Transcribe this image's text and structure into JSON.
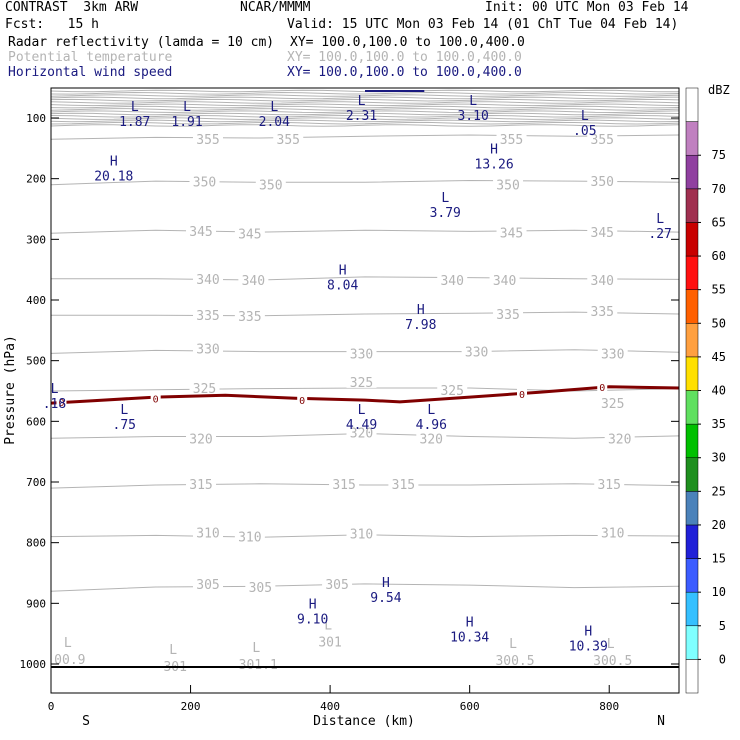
{
  "header": {
    "model": "CONTRAST  3km ARW",
    "center": "NCAR/MMMM",
    "init": "Init: 00 UTC Mon 03 Feb 14",
    "fcst": "Fcst:   15 h",
    "valid": "Valid: 15 UTC Mon 03 Feb 14 (01 ChT Tue 04 Feb 14)",
    "fields": [
      {
        "name": "Radar reflectivity (lamda = 10 cm)",
        "xy": "XY= 100.0,100.0 to 100.0,400.0",
        "color": "#000000"
      },
      {
        "name": "Potential temperature",
        "xy": "XY= 100.0,100.0 to 100.0,400.0",
        "color": "#b4b4b4"
      },
      {
        "name": "Horizontal wind speed",
        "xy": "XY= 100.0,100.0 to 100.0,400.0",
        "color": "#1a1a80"
      }
    ]
  },
  "colors": {
    "theta": "#b4b4b4",
    "wind": "#1a1a80",
    "zero_line": "#800000",
    "axis": "#000000"
  },
  "chart_data": {
    "type": "cross-section",
    "xlabel": "Distance (km)",
    "ylabel": "Pressure (hPa)",
    "xlim": [
      0,
      900
    ],
    "ylim": [
      1050,
      50
    ],
    "xticks": [
      0,
      200,
      400,
      600,
      800
    ],
    "yticks": [
      100,
      200,
      300,
      400,
      500,
      600,
      700,
      800,
      900,
      1000
    ],
    "x_end_labels": [
      "S",
      "N"
    ],
    "theta_contours": [
      {
        "label": "355",
        "points": [
          [
            0,
            135
          ],
          [
            150,
            132
          ],
          [
            300,
            133
          ],
          [
            450,
            130
          ],
          [
            600,
            128
          ],
          [
            750,
            130
          ],
          [
            900,
            128
          ]
        ],
        "label_at": [
          [
            225,
            135
          ],
          [
            340,
            135
          ],
          [
            660,
            135
          ],
          [
            790,
            135
          ]
        ]
      },
      {
        "label": "350",
        "points": [
          [
            0,
            210
          ],
          [
            150,
            204
          ],
          [
            300,
            206
          ],
          [
            450,
            206
          ],
          [
            600,
            203
          ],
          [
            750,
            204
          ],
          [
            900,
            206
          ]
        ],
        "label_at": [
          [
            220,
            205
          ],
          [
            315,
            210
          ],
          [
            655,
            210
          ],
          [
            790,
            204
          ]
        ]
      },
      {
        "label": "345",
        "points": [
          [
            0,
            290
          ],
          [
            150,
            285
          ],
          [
            300,
            288
          ],
          [
            450,
            285
          ],
          [
            600,
            287
          ],
          [
            750,
            285
          ],
          [
            900,
            288
          ]
        ],
        "label_at": [
          [
            215,
            286
          ],
          [
            285,
            290
          ],
          [
            660,
            289
          ],
          [
            790,
            288
          ]
        ]
      },
      {
        "label": "340",
        "points": [
          [
            0,
            365
          ],
          [
            150,
            365
          ],
          [
            300,
            367
          ],
          [
            450,
            362
          ],
          [
            600,
            363
          ],
          [
            750,
            365
          ],
          [
            900,
            366
          ]
        ],
        "label_at": [
          [
            225,
            365
          ],
          [
            290,
            367
          ],
          [
            575,
            367
          ],
          [
            650,
            367
          ],
          [
            790,
            367
          ]
        ]
      },
      {
        "label": "335",
        "points": [
          [
            0,
            425
          ],
          [
            150,
            425
          ],
          [
            300,
            426
          ],
          [
            450,
            423
          ],
          [
            600,
            422
          ],
          [
            750,
            420
          ],
          [
            900,
            423
          ]
        ],
        "label_at": [
          [
            225,
            425
          ],
          [
            285,
            426
          ],
          [
            655,
            423
          ],
          [
            790,
            418
          ]
        ]
      },
      {
        "label": "330",
        "points": [
          [
            0,
            488
          ],
          [
            150,
            483
          ],
          [
            300,
            485
          ],
          [
            450,
            485
          ],
          [
            600,
            485
          ],
          [
            750,
            482
          ],
          [
            900,
            486
          ]
        ],
        "label_at": [
          [
            225,
            480
          ],
          [
            445,
            488
          ],
          [
            610,
            485
          ],
          [
            805,
            488
          ]
        ]
      },
      {
        "label": "325",
        "points": [
          [
            0,
            550
          ],
          [
            150,
            548
          ],
          [
            300,
            546
          ],
          [
            450,
            545
          ],
          [
            600,
            545
          ],
          [
            750,
            550
          ],
          [
            900,
            546
          ]
        ],
        "label_at": [
          [
            220,
            545
          ],
          [
            445,
            535
          ],
          [
            575,
            548
          ],
          [
            805,
            570
          ]
        ]
      },
      {
        "label": "320",
        "points": [
          [
            0,
            628
          ],
          [
            150,
            625
          ],
          [
            300,
            625
          ],
          [
            450,
            620
          ],
          [
            600,
            625
          ],
          [
            750,
            628
          ],
          [
            900,
            624
          ]
        ],
        "label_at": [
          [
            215,
            628
          ],
          [
            445,
            618
          ],
          [
            545,
            628
          ],
          [
            815,
            628
          ]
        ]
      },
      {
        "label": "315",
        "points": [
          [
            0,
            710
          ],
          [
            150,
            705
          ],
          [
            300,
            703
          ],
          [
            450,
            705
          ],
          [
            600,
            705
          ],
          [
            750,
            703
          ],
          [
            900,
            706
          ]
        ],
        "label_at": [
          [
            215,
            703
          ],
          [
            420,
            703
          ],
          [
            505,
            703
          ],
          [
            800,
            703
          ]
        ]
      },
      {
        "label": "310",
        "points": [
          [
            0,
            790
          ],
          [
            150,
            788
          ],
          [
            300,
            791
          ],
          [
            450,
            787
          ],
          [
            600,
            790
          ],
          [
            750,
            788
          ],
          [
            900,
            789
          ]
        ],
        "label_at": [
          [
            225,
            783
          ],
          [
            285,
            790
          ],
          [
            445,
            785
          ],
          [
            805,
            783
          ]
        ]
      },
      {
        "label": "305",
        "points": [
          [
            0,
            880
          ],
          [
            150,
            873
          ],
          [
            300,
            872
          ],
          [
            450,
            868
          ],
          [
            600,
            870
          ],
          [
            750,
            874
          ],
          [
            900,
            872
          ]
        ],
        "label_at": [
          [
            225,
            868
          ],
          [
            300,
            873
          ],
          [
            410,
            868
          ]
        ]
      },
      {
        "label": "301",
        "points": [],
        "label_at": [
          [
            178,
            1003
          ],
          [
            400,
            963
          ]
        ]
      },
      {
        "label": "301.1",
        "points": [],
        "label_at": [
          [
            297,
            1000
          ]
        ]
      },
      {
        "label": "300.5",
        "points": [],
        "label_at": [
          [
            665,
            993
          ],
          [
            805,
            993
          ]
        ]
      },
      {
        "label": "00.9",
        "points": [],
        "label_at": [
          [
            27,
            992
          ]
        ]
      }
    ],
    "zero_line": {
      "label": "0",
      "points": [
        [
          0,
          570
        ],
        [
          60,
          566
        ],
        [
          150,
          560
        ],
        [
          250,
          557
        ],
        [
          350,
          562
        ],
        [
          450,
          565
        ],
        [
          500,
          568
        ],
        [
          600,
          560
        ],
        [
          700,
          552
        ],
        [
          800,
          543
        ],
        [
          900,
          545
        ]
      ],
      "label_at": [
        [
          15,
          568
        ],
        [
          150,
          562
        ],
        [
          360,
          565
        ],
        [
          675,
          555
        ],
        [
          790,
          543
        ]
      ]
    },
    "wind_extrema": [
      {
        "type": "L",
        "value": "1.87",
        "x": 120,
        "p": 75
      },
      {
        "type": "L",
        "value": "1.91",
        "x": 195,
        "p": 75
      },
      {
        "type": "L",
        "value": "2.04",
        "x": 320,
        "p": 75
      },
      {
        "type": "L",
        "value": "2.31",
        "x": 445,
        "p": 65
      },
      {
        "type": "L",
        "value": "3.10",
        "x": 605,
        "p": 65
      },
      {
        "type": "L",
        "value": ".05",
        "x": 765,
        "p": 90
      },
      {
        "type": "H",
        "value": "20.18",
        "x": 90,
        "p": 165
      },
      {
        "type": "H",
        "value": "13.26",
        "x": 635,
        "p": 145
      },
      {
        "type": "L",
        "value": "3.79",
        "x": 565,
        "p": 225
      },
      {
        "type": "L",
        "value": ".27",
        "x": 873,
        "p": 260
      },
      {
        "type": "H",
        "value": "8.04",
        "x": 418,
        "p": 345
      },
      {
        "type": "H",
        "value": "7.98",
        "x": 530,
        "p": 410
      },
      {
        "type": "L",
        "value": ".18",
        "x": 5,
        "p": 540
      },
      {
        "type": "L",
        "value": ".75",
        "x": 105,
        "p": 575
      },
      {
        "type": "L",
        "value": "4.49",
        "x": 445,
        "p": 575
      },
      {
        "type": "L",
        "value": "4.96",
        "x": 545,
        "p": 575
      },
      {
        "type": "H",
        "value": "9.54",
        "x": 480,
        "p": 860
      },
      {
        "type": "H",
        "value": "9.10",
        "x": 375,
        "p": 895
      },
      {
        "type": "H",
        "value": "10.34",
        "x": 600,
        "p": 925
      },
      {
        "type": "H",
        "value": "10.39",
        "x": 770,
        "p": 940
      }
    ],
    "colorbar": {
      "unit": "dBZ",
      "levels": [
        0,
        5,
        10,
        15,
        20,
        25,
        30,
        35,
        40,
        45,
        50,
        55,
        60,
        65,
        70,
        75
      ],
      "colors": [
        "#ffffff",
        "#7fffff",
        "#35c0ff",
        "#3b5cff",
        "#2020d8",
        "#4b82ba",
        "#1f8f1f",
        "#00c000",
        "#60e060",
        "#ffe000",
        "#ffa040",
        "#ff6000",
        "#ff1010",
        "#c80000",
        "#a03050",
        "#9040a0",
        "#c080c0",
        "#ffffff"
      ]
    }
  }
}
